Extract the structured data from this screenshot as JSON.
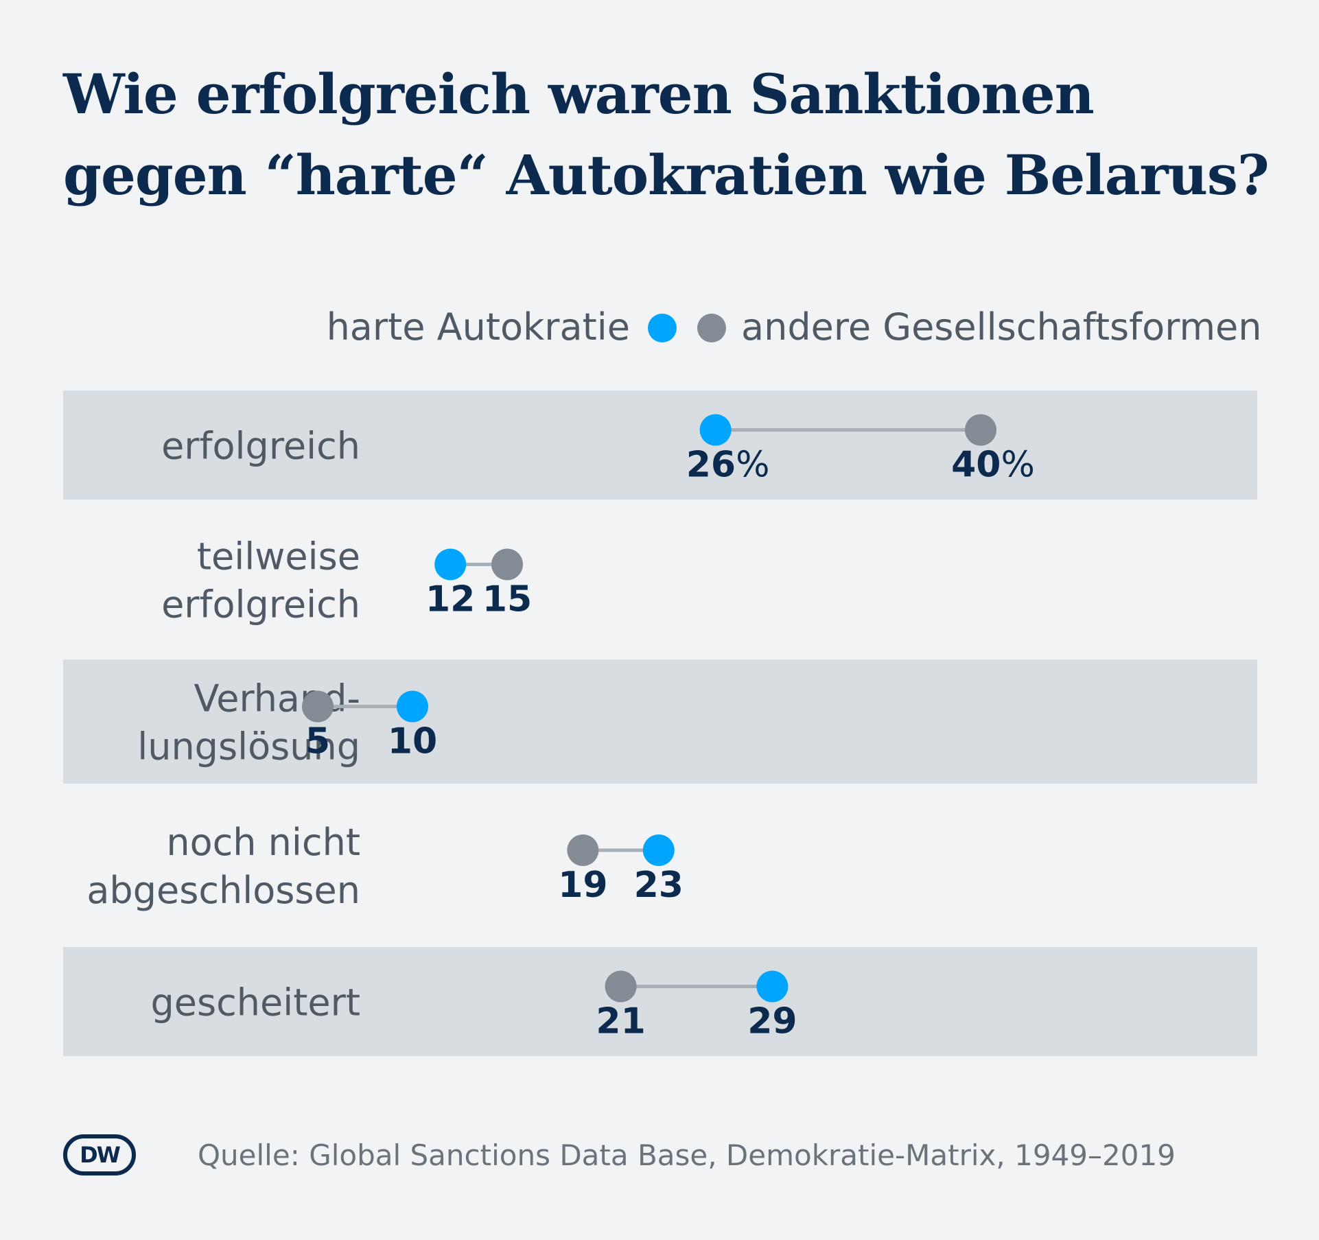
{
  "chart_data": {
    "type": "dumbbell",
    "title": "Wie erfolgreich waren Sanktionen gegen “harte“ Autokratien wie Belarus?",
    "title_lines": [
      "Wie erfolgreich waren Sanktionen",
      "gegen “harte“ Autokratien wie Belarus?"
    ],
    "unit": "%",
    "xlim": [
      0,
      42
    ],
    "legend_position": "top-right",
    "series": [
      {
        "name": "harte Autokratie",
        "color": "#00a5ff"
      },
      {
        "name": "andere Gesellschaftsformen",
        "color": "#838b94"
      }
    ],
    "categories": [
      {
        "label": [
          "erfolgreich"
        ],
        "values": [
          26,
          40
        ],
        "band": true,
        "show_unit": true
      },
      {
        "label": [
          "teilweise",
          "erfolgreich"
        ],
        "values": [
          12,
          15
        ],
        "band": false,
        "show_unit": false
      },
      {
        "label": [
          "Verhand-",
          "lungslösung"
        ],
        "values": [
          10,
          5
        ],
        "band": true,
        "show_unit": false
      },
      {
        "label": [
          "noch nicht",
          "abgeschlossen"
        ],
        "values": [
          23,
          19
        ],
        "band": false,
        "show_unit": false
      },
      {
        "label": [
          "gescheitert"
        ],
        "values": [
          29,
          21
        ],
        "band": true,
        "show_unit": false
      }
    ]
  },
  "logo": {
    "text": "DW"
  },
  "source": "Quelle: Global Sanctions Data Base, Demokratie-Matrix, 1949–2019"
}
